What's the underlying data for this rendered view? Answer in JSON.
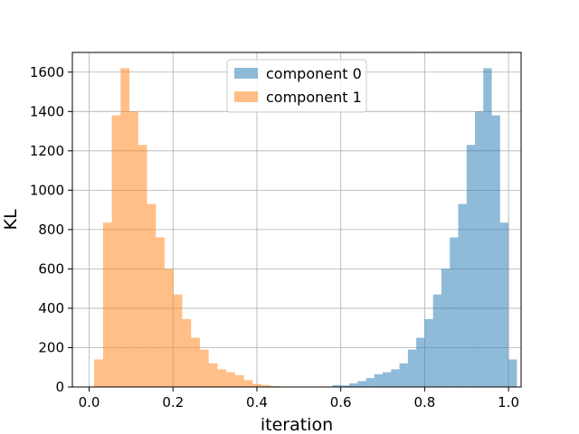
{
  "chart_data": {
    "type": "bar",
    "title": "",
    "xlabel": "iteration",
    "ylabel": "KL",
    "xlim": [
      -0.04,
      1.03
    ],
    "ylim": [
      0,
      1700
    ],
    "grid": true,
    "legend_position": "top-center",
    "x_ticks": [
      0.0,
      0.2,
      0.4,
      0.6,
      0.8,
      1.0
    ],
    "x_tick_labels": [
      "0.0",
      "0.2",
      "0.4",
      "0.6",
      "0.8",
      "1.0"
    ],
    "y_ticks": [
      0,
      200,
      400,
      600,
      800,
      1000,
      1200,
      1400,
      1600
    ],
    "y_tick_labels": [
      "0",
      "200",
      "400",
      "600",
      "800",
      "1000",
      "1200",
      "1400",
      "1600"
    ],
    "series": [
      {
        "name": "component 0",
        "color": "#1f77b4",
        "alpha": 0.5,
        "bins": [
          [
            0.58,
            0.6,
            10
          ],
          [
            0.6,
            0.62,
            8
          ],
          [
            0.62,
            0.64,
            18
          ],
          [
            0.64,
            0.66,
            30
          ],
          [
            0.66,
            0.68,
            45
          ],
          [
            0.68,
            0.7,
            65
          ],
          [
            0.7,
            0.72,
            75
          ],
          [
            0.72,
            0.74,
            90
          ],
          [
            0.74,
            0.76,
            120
          ],
          [
            0.76,
            0.78,
            190
          ],
          [
            0.78,
            0.8,
            250
          ],
          [
            0.8,
            0.82,
            345
          ],
          [
            0.82,
            0.84,
            470
          ],
          [
            0.84,
            0.86,
            600
          ],
          [
            0.86,
            0.88,
            760
          ],
          [
            0.88,
            0.9,
            930
          ],
          [
            0.9,
            0.92,
            1230
          ],
          [
            0.92,
            0.94,
            1400
          ],
          [
            0.94,
            0.96,
            1620
          ],
          [
            0.96,
            0.98,
            1380
          ],
          [
            0.98,
            1.0,
            835
          ],
          [
            1.0,
            1.02,
            140
          ]
        ]
      },
      {
        "name": "component 1",
        "color": "#ff7f0e",
        "alpha": 0.5,
        "bins": [
          [
            0.012,
            0.033,
            140
          ],
          [
            0.033,
            0.054,
            835
          ],
          [
            0.054,
            0.075,
            1380
          ],
          [
            0.075,
            0.096,
            1620
          ],
          [
            0.096,
            0.117,
            1400
          ],
          [
            0.117,
            0.138,
            1230
          ],
          [
            0.138,
            0.159,
            930
          ],
          [
            0.159,
            0.18,
            760
          ],
          [
            0.18,
            0.201,
            600
          ],
          [
            0.201,
            0.222,
            470
          ],
          [
            0.222,
            0.243,
            345
          ],
          [
            0.243,
            0.264,
            250
          ],
          [
            0.264,
            0.285,
            190
          ],
          [
            0.285,
            0.306,
            120
          ],
          [
            0.306,
            0.327,
            90
          ],
          [
            0.327,
            0.348,
            75
          ],
          [
            0.348,
            0.369,
            60
          ],
          [
            0.369,
            0.39,
            35
          ],
          [
            0.39,
            0.411,
            15
          ],
          [
            0.411,
            0.432,
            10
          ],
          [
            0.432,
            0.453,
            5
          ]
        ]
      }
    ]
  }
}
